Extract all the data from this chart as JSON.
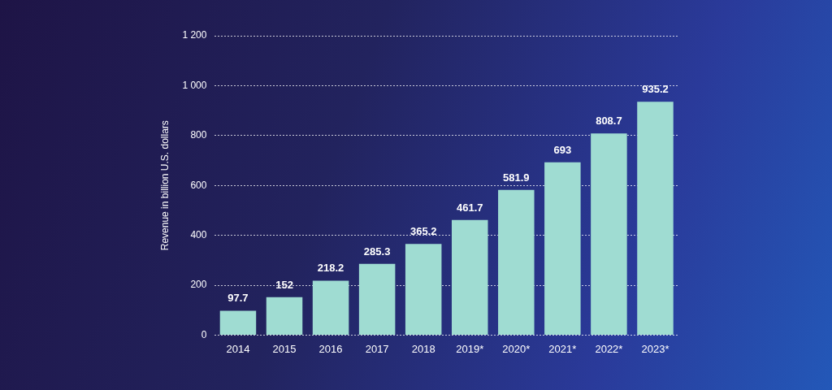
{
  "chart_data": {
    "type": "bar",
    "ylabel": "Revenue in billion U.S. dollars",
    "categories": [
      "2014",
      "2015",
      "2016",
      "2017",
      "2018",
      "2019*",
      "2020*",
      "2021*",
      "2022*",
      "2023*"
    ],
    "values": [
      97.7,
      152,
      218.2,
      285.3,
      365.2,
      461.7,
      581.9,
      693,
      808.7,
      935.2
    ],
    "color": "#9fdcd2",
    "ylim": [
      0,
      1200
    ],
    "yticks": [
      0,
      200,
      400,
      600,
      800,
      {
        "value": 1000,
        "label": "1 000"
      },
      {
        "value": 1200,
        "label": "1 200"
      }
    ],
    "grid": "y",
    "data_labels": true,
    "legend": false
  }
}
